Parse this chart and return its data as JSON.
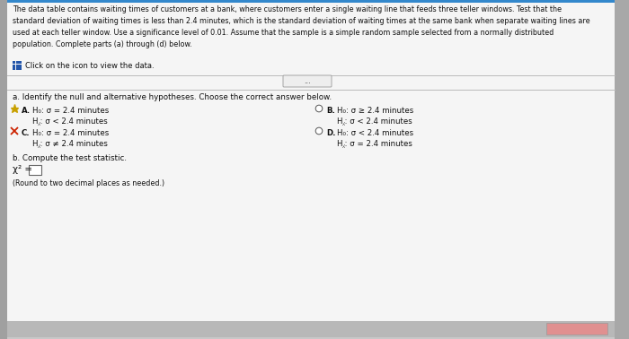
{
  "bg_color": "#c8c8c8",
  "panel_color": "#e0e0e0",
  "white_color": "#f5f5f5",
  "inner_white": "#ffffff",
  "text_color": "#111111",
  "dark_gray": "#444444",
  "top_paragraph": "The data table contains waiting times of customers at a bank, where customers enter a single waiting line that feeds three teller windows. Test that the\nstandard deviation of waiting times is less than 2.4 minutes, which is the standard deviation of waiting times at the same bank when separate waiting lines are\nused at each teller window. Use a significance level of 0.01. Assume that the sample is a simple random sample selected from a normally distributed\npopulation. Complete parts (a) through (d) below.",
  "click_text": "Click on the icon to view the data.",
  "question_a": "a. Identify the null and alternative hypotheses. Choose the correct answer below.",
  "optA_h0": "H₀: σ = 2.4 minutes",
  "optA_ha": "H⁁: σ < 2.4 minutes",
  "optB_h0": "H₀: σ ≥ 2.4 minutes",
  "optB_ha": "H⁁: σ < 2.4 minutes",
  "optC_h0": "H₀: σ = 2.4 minutes",
  "optC_ha": "H⁁: σ ≠ 2.4 minutes",
  "optD_h0": "H₀: σ < 2.4 minutes",
  "optD_ha": "H⁁: σ = 2.4 minutes",
  "question_b": "b. Compute the test statistic.",
  "chi2_prefix": "χ² =",
  "round_note": "(Round to two decimal places as needed.)",
  "label_A": "A.",
  "label_B": "B.",
  "label_C": "C.",
  "label_D": "D.",
  "dots_text": "...",
  "icon_color": "#2255aa",
  "star_color": "#c8a000",
  "x_color": "#cc2200",
  "radio_color": "#555555",
  "sep_color": "#bbbbbb",
  "bottom_bar_color": "#b8b8b8",
  "btn_color": "#e09090"
}
